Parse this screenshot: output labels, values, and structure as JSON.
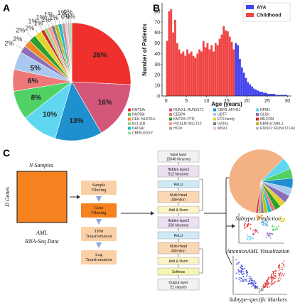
{
  "panels": {
    "a": "A",
    "b": "B",
    "c": "C"
  },
  "pie": {
    "slices": [
      {
        "label": "26%",
        "value": 26,
        "color": "#f0302c"
      },
      {
        "label": "16%",
        "value": 16,
        "color": "#d4577a"
      },
      {
        "label": "13%",
        "value": 13,
        "color": "#1e8fcf"
      },
      {
        "label": "10%",
        "value": 10,
        "color": "#5fd7f0"
      },
      {
        "label": "8%",
        "value": 8,
        "color": "#4fd163"
      },
      {
        "label": "6%",
        "value": 6,
        "color": "#ee7777"
      },
      {
        "label": "5%",
        "value": 5,
        "color": "#a9c8ef"
      },
      {
        "label": "2%",
        "value": 2,
        "color": "#8c6fb8"
      },
      {
        "label": "2%",
        "value": 2,
        "color": "#f08a24"
      },
      {
        "label": "2%",
        "value": 2,
        "color": "#2ca02c"
      },
      {
        "label": "2%",
        "value": 2,
        "color": "#e3d42b"
      },
      {
        "label": "1%",
        "value": 1,
        "color": "#d62728"
      },
      {
        "label": "1%",
        "value": 1,
        "color": "#9ed47a"
      },
      {
        "label": "1%",
        "value": 1,
        "color": "#ff9896"
      },
      {
        "label": "1%",
        "value": 1,
        "color": "#7f7f7f"
      },
      {
        "label": "1%",
        "value": 1,
        "color": "#bcbd22"
      },
      {
        "label": "1%",
        "value": 1,
        "color": "#17becf"
      },
      {
        "label": "1%",
        "value": 1,
        "color": "#c49c94"
      },
      {
        "label": "0%",
        "value": 0.6,
        "color": "#f7b6d2"
      },
      {
        "label": "0%",
        "value": 0.6,
        "color": "#c5b0d5"
      },
      {
        "label": "0%",
        "value": 0.6,
        "color": "#98df8a"
      }
    ],
    "legend": [
      {
        "label": "KMT2Ar",
        "color": "#f0302c"
      },
      {
        "label": "RUNX1::RUNX1T1",
        "color": "#d4577a"
      },
      {
        "label": "CBFB::MYH11",
        "color": "#1e8fcf"
      },
      {
        "label": "NPM1",
        "color": "#5fd7f0"
      },
      {
        "label": "NUP98r",
        "color": "#4fd163"
      },
      {
        "label": "CEBPA",
        "color": "#ee7777"
      },
      {
        "label": "UBTF",
        "color": "#a9c8ef"
      },
      {
        "label": "GLISr",
        "color": "#8c6fb8"
      },
      {
        "label": "DEK::NUP214",
        "color": "#f08a24"
      },
      {
        "label": "KMT2A::PTD",
        "color": "#2ca02c"
      },
      {
        "label": "ETS family",
        "color": "#e3d42b"
      },
      {
        "label": "MECOM",
        "color": "#d62728"
      },
      {
        "label": "BCL11B",
        "color": "#9ed47a"
      },
      {
        "label": "PICALM::MLLT10",
        "color": "#ff9896"
      },
      {
        "label": "GATA1",
        "color": "#7f7f7f"
      },
      {
        "label": "RBM15::MKL1",
        "color": "#bcbd22"
      },
      {
        "label": "KAT6Ar",
        "color": "#17becf"
      },
      {
        "label": "HOXr",
        "color": "#c49c94"
      },
      {
        "label": "MNX1",
        "color": "#f7b6d2"
      },
      {
        "label": "RUNX1::RUNX1T1-like",
        "color": "#c5b0d5"
      },
      {
        "label": "CBFB-GDXY",
        "color": "#98df8a"
      }
    ]
  },
  "chart_data": {
    "type": "bar",
    "xlabel": "Age (years)",
    "ylabel": "Number of Patients",
    "xlim": [
      -1,
      31
    ],
    "ylim": [
      0,
      88
    ],
    "xticks": [
      0,
      5,
      10,
      15,
      20,
      25,
      30
    ],
    "yticks": [
      0,
      10,
      20,
      30,
      40,
      50,
      60,
      70,
      80
    ],
    "legend_position": "top-right",
    "series": [
      {
        "name": "AYA",
        "color": "#4444ee",
        "x": [
          17,
          17.5,
          18,
          18.5,
          19,
          19.5,
          20,
          20.5,
          21,
          21.5,
          22,
          22.5,
          23,
          23.5,
          24,
          24.5,
          25,
          25.5,
          26,
          26.5,
          27,
          27.5,
          28,
          28.5,
          29,
          29.5
        ],
        "values": [
          50,
          48,
          35,
          27,
          22,
          17,
          13,
          11,
          9,
          7,
          6,
          5,
          4,
          4,
          3,
          3,
          2,
          2,
          2,
          2,
          1,
          1,
          1,
          1,
          1,
          1
        ]
      },
      {
        "name": "Childhood",
        "color": "#f04545",
        "x": [
          0,
          0.5,
          1,
          1.5,
          2,
          2.5,
          3,
          3.5,
          4,
          4.5,
          5,
          5.5,
          6,
          6.5,
          7,
          7.5,
          8,
          8.5,
          9,
          9.5,
          10,
          10.5,
          11,
          11.5,
          12,
          12.5,
          13,
          13.5,
          14,
          14.5,
          15,
          15.5,
          16,
          16.5
        ],
        "values": [
          52,
          80,
          82,
          60,
          72,
          50,
          44,
          40,
          42,
          38,
          44,
          40,
          42,
          38,
          36,
          40,
          44,
          42,
          52,
          46,
          50,
          44,
          48,
          42,
          50,
          48,
          54,
          58,
          66,
          62,
          61,
          56,
          51,
          44
        ]
      }
    ]
  },
  "workflow": {
    "samples_label": "N Samples",
    "genes_label": "D Genes",
    "data_title": "AML",
    "data_subtitle": "RNA-Seq Data",
    "steps": [
      "Sample Filtering",
      "Gene Filtering",
      "TPM Transformation",
      "Log Transformation"
    ]
  },
  "architecture": {
    "layers": [
      {
        "line1": "Input layer",
        "line2": "15646 Neurons",
        "color": "#f2f2f2"
      },
      {
        "line1": "Hidden layer1",
        "line2": "512 Neurons",
        "color": "#ecdff2"
      },
      {
        "line1": "ReLU",
        "line2": "",
        "color": "#cfeaf7"
      },
      {
        "line1": "Multi-Head",
        "line2": "Attention",
        "color": "#fbd7b4"
      },
      {
        "line1": "Add & Norm",
        "line2": "",
        "color": "#fdf3c5"
      },
      {
        "line1": "Hidden layer2",
        "line2": "256 Neurons",
        "color": "#ecdff2"
      },
      {
        "line1": "ReLU",
        "line2": "",
        "color": "#cfeaf7"
      },
      {
        "line1": "Multi-Head",
        "line2": "Attention",
        "color": "#fbd7b4"
      },
      {
        "line1": "Add & Norm",
        "line2": "",
        "color": "#fdf3c5"
      },
      {
        "line1": "Softmax",
        "line2": "",
        "color": "#f6f6b3"
      },
      {
        "line1": "Output layer",
        "line2": "21 classes",
        "color": "#f2f2f2"
      }
    ]
  },
  "outputs": {
    "prediction": "Subtypes Prediction",
    "visualization": "AttentionAML Visualization",
    "markers": "Subtype-specific Markers"
  }
}
